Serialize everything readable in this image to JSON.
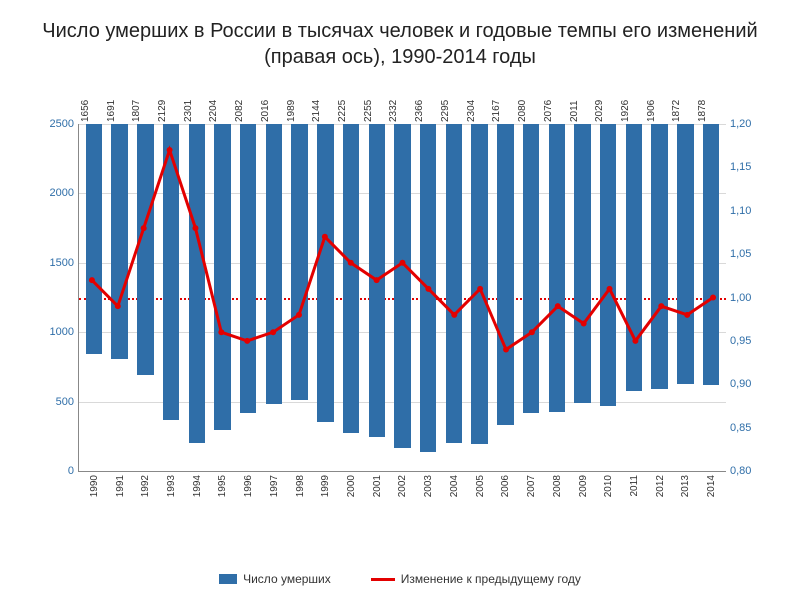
{
  "title": "Число умерших в России в тысячах человек и годовые темпы его изменений (правая ось), 1990-2014 годы",
  "chart": {
    "type": "bar+line",
    "years": [
      "1990",
      "1991",
      "1992",
      "1993",
      "1994",
      "1995",
      "1996",
      "1997",
      "1998",
      "1999",
      "2000",
      "2001",
      "2002",
      "2003",
      "2004",
      "2005",
      "2006",
      "2007",
      "2008",
      "2009",
      "2010",
      "2011",
      "2012",
      "2013",
      "2014"
    ],
    "bar_values": [
      1656,
      1691,
      1807,
      2129,
      2301,
      2204,
      2082,
      2016,
      1989,
      2144,
      2225,
      2255,
      2332,
      2366,
      2295,
      2304,
      2167,
      2080,
      2076,
      2011,
      2029,
      1926,
      1906,
      1872,
      1878
    ],
    "line_values": [
      1.02,
      0.99,
      1.08,
      1.17,
      1.08,
      0.96,
      0.95,
      0.96,
      0.98,
      1.07,
      1.04,
      1.02,
      1.04,
      1.01,
      0.98,
      1.01,
      0.94,
      0.96,
      0.99,
      0.97,
      1.01,
      0.95,
      0.99,
      0.98,
      1.0
    ],
    "left_axis": {
      "min": 0,
      "max": 2500,
      "step": 500
    },
    "right_axis": {
      "min": 0.8,
      "max": 1.2,
      "step": 0.05
    },
    "reference": 1.0,
    "colors": {
      "bar": "#2f6ea8",
      "line": "#e30000",
      "grid": "#d9d9d9",
      "axis_text": "#2f6ea8",
      "bg": "#ffffff"
    },
    "legend": {
      "bar_label": "Число умерших",
      "line_label": "Изменение к предыдущему году"
    }
  }
}
